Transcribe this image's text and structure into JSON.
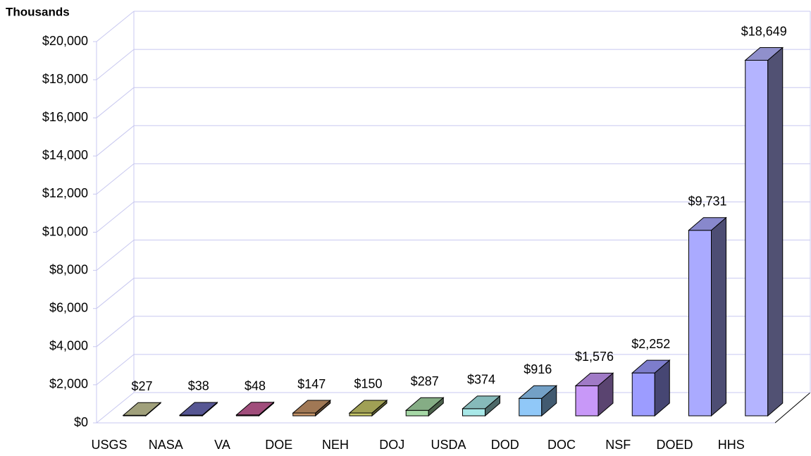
{
  "chart_data": {
    "type": "bar3d",
    "y_axis_label": "Thousands",
    "categories": [
      "USGS",
      "NASA",
      "VA",
      "DOE",
      "NEH",
      "DOJ",
      "USDA",
      "DOD",
      "DOC",
      "NSF",
      "DOED",
      "HHS"
    ],
    "values": [
      27,
      38,
      48,
      147,
      150,
      287,
      374,
      916,
      1576,
      2252,
      9731,
      18649
    ],
    "value_labels": [
      "$27",
      "$38",
      "$48",
      "$147",
      "$150",
      "$287",
      "$374",
      "$916",
      "$1,576",
      "$2,252",
      "$9,731",
      "$18,649"
    ],
    "colors": [
      "#c8c89a",
      "#6b6bb8",
      "#c8609a",
      "#c8966a",
      "#c8c86a",
      "#a6d8a6",
      "#a8e8e8",
      "#90c8f8",
      "#c898f8",
      "#9c9cff",
      "#aaaaff",
      "#b4b4ff"
    ],
    "ylim": [
      0,
      20000
    ],
    "yticks": [
      {
        "value": 0,
        "label": "$0"
      },
      {
        "value": 2000,
        "label": "$2,000"
      },
      {
        "value": 4000,
        "label": "$4,000"
      },
      {
        "value": 6000,
        "label": "$6,000"
      },
      {
        "value": 8000,
        "label": "$8,000"
      },
      {
        "value": 10000,
        "label": "$10,000"
      },
      {
        "value": 12000,
        "label": "$12,000"
      },
      {
        "value": 14000,
        "label": "$14,000"
      },
      {
        "value": 16000,
        "label": "$16,000"
      },
      {
        "value": 18000,
        "label": "$18,000"
      },
      {
        "value": 20000,
        "label": "$20,000"
      }
    ],
    "grid": true
  }
}
